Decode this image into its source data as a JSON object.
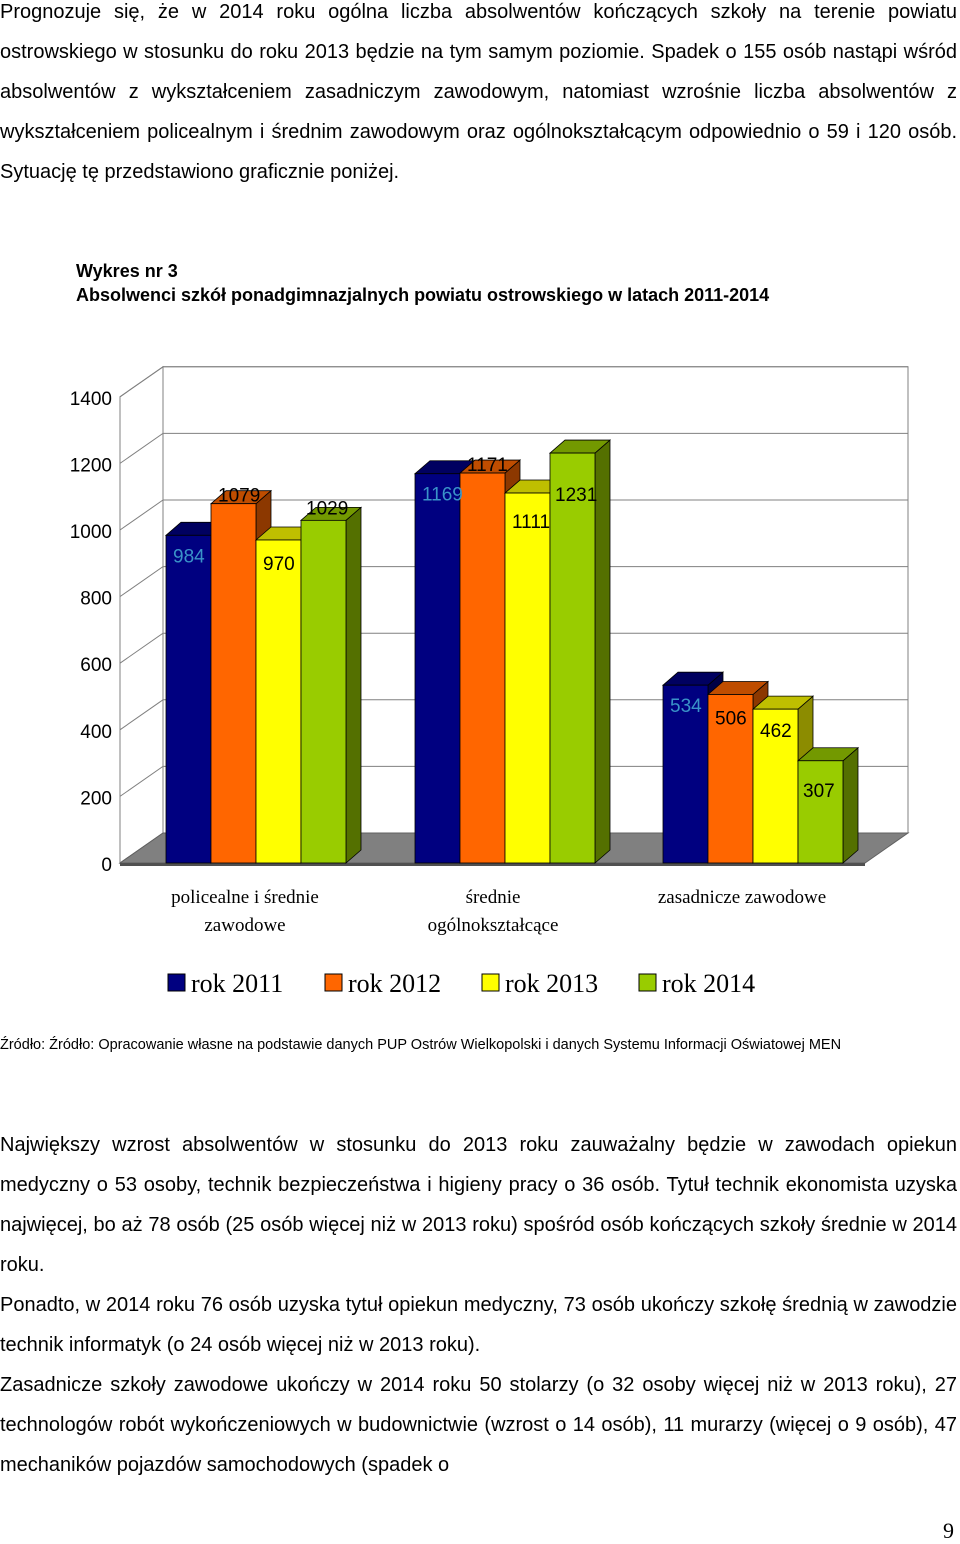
{
  "intro_paragraph": "Prognozuje się, że w 2014 roku ogólna liczba absolwentów kończących szkoły na terenie powiatu ostrowskiego w stosunku do roku 2013 będzie na tym samym poziomie. Spadek o 155 osób nastąpi wśród absolwentów z wykształceniem zasadniczym zawodowym, natomiast wzrośnie liczba absolwentów z wykształceniem policealnym i średnim zawodowym oraz ogólnokształcącym odpowiednio o 59 i 120 osób. Sytuację tę przedstawiono graficznie poniżej.",
  "chart_number": "Wykres nr 3",
  "chart_title": "Absolwenci szkół ponadgimnazjalnych powiatu ostrowskiego w latach 2011-2014",
  "chart_data": {
    "type": "bar",
    "categories": [
      "policealne i średnie zawodowe",
      "średnie ogólnokształcące",
      "zasadnicze zawodowe"
    ],
    "series": [
      {
        "name": "rok 2011",
        "color": "#000080",
        "values": [
          984,
          1169,
          534
        ]
      },
      {
        "name": "rok 2012",
        "color": "#ff6600",
        "values": [
          1079,
          1171,
          506
        ]
      },
      {
        "name": "rok 2013",
        "color": "#ffff00",
        "values": [
          970,
          1111,
          462
        ]
      },
      {
        "name": "rok 2014",
        "color": "#99cc00",
        "values": [
          1029,
          1231,
          307
        ]
      }
    ],
    "ylim": [
      0,
      1400
    ],
    "yticks": [
      "0",
      "200",
      "400",
      "600",
      "800",
      "1000",
      "1200",
      "1400"
    ],
    "grid": true,
    "legend": "bottom",
    "style": "3d"
  },
  "source": "Źródło: Źródło: Opracowanie własne na podstawie danych PUP Ostrów Wielkopolski i danych Systemu Informacji Oświatowej MEN",
  "paragraphs": [
    "Największy wzrost absolwentów w stosunku do 2013 roku zauważalny będzie w zawodach opiekun medyczny o 53 osoby, technik bezpieczeństwa i higieny pracy o 36 osób. Tytuł technik ekonomista uzyska najwięcej, bo aż 78 osób (25 osób więcej niż w 2013 roku) spośród osób kończących szkoły średnie w 2014 roku.",
    "Ponadto, w 2014 roku 76 osób uzyska tytuł opiekun medyczny, 73 osób ukończy szkołę średnią w zawodzie technik informatyk (o 24 osób więcej niż w 2013 roku).",
    "Zasadnicze szkoły zawodowe ukończy w 2014 roku 50 stolarzy (o 32 osoby więcej niż w 2013 roku), 27 technologów robót wykończeniowych w budownictwie (wzrost o 14 osób), 11 murarzy (więcej o 9 osób), 47 mechaników pojazdów samochodowych (spadek o"
  ],
  "page_number": "9"
}
